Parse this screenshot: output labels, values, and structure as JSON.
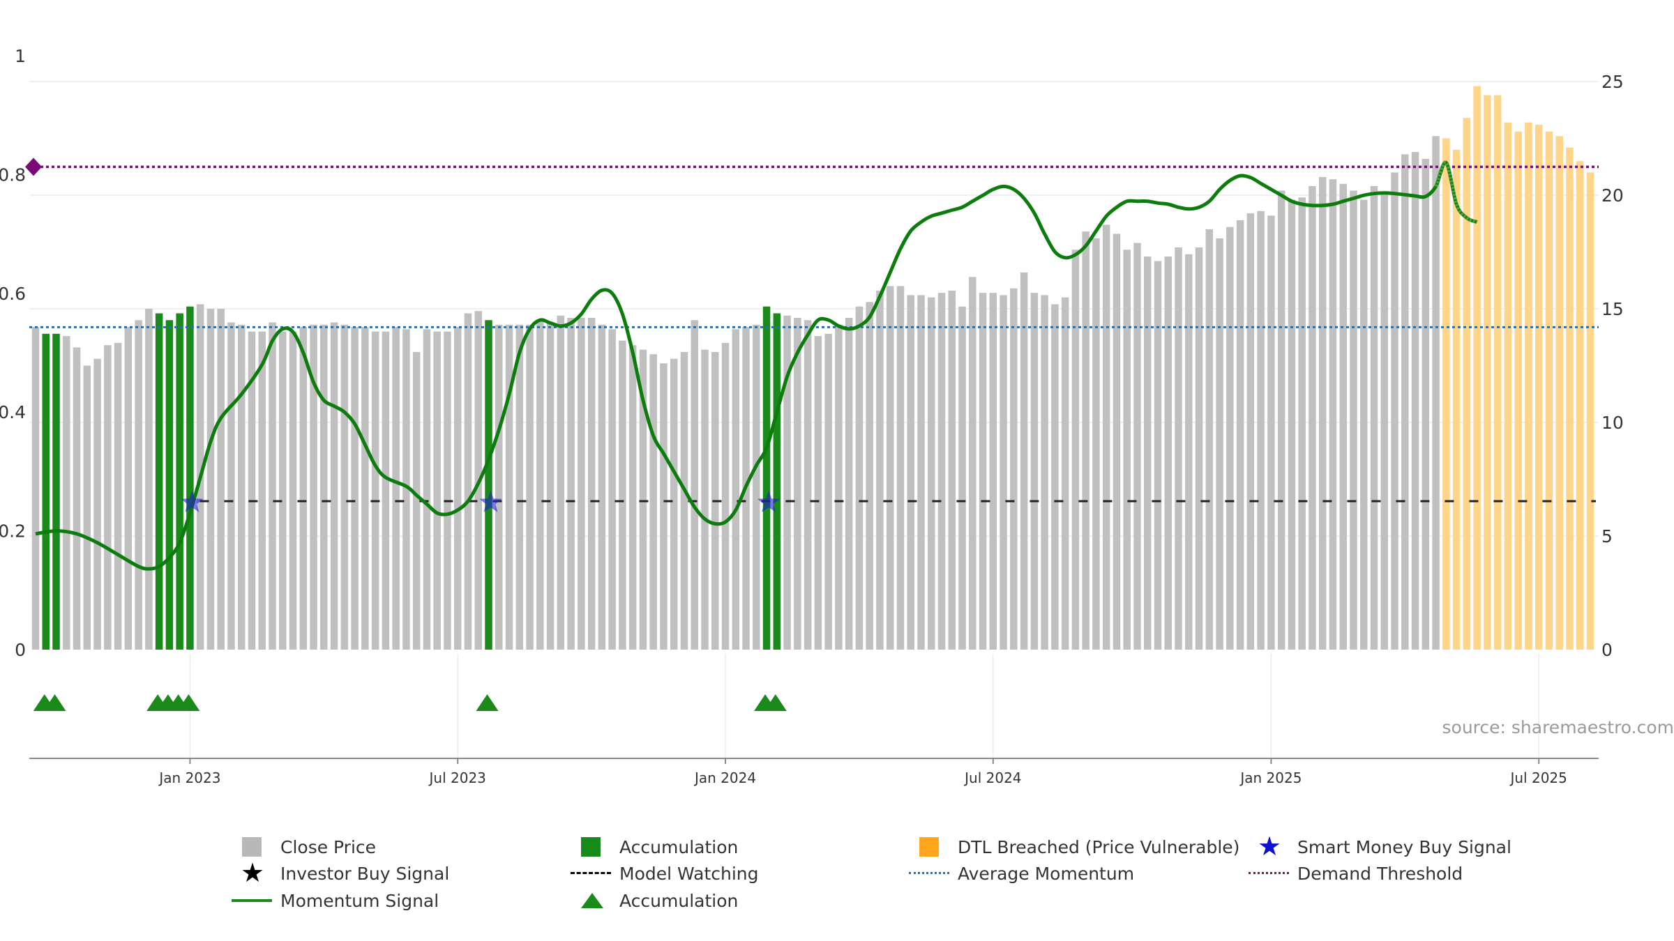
{
  "chart_data": {
    "type": "bar",
    "title": "",
    "source": "source: sharemaestro.com",
    "left_axis": {
      "range": [
        0,
        1
      ],
      "ticks": [
        "0",
        "0.2",
        "0.4",
        "0.6",
        "0.8",
        "1"
      ]
    },
    "right_axis": {
      "range": [
        0,
        25
      ],
      "ticks": [
        "0",
        "5",
        "10",
        "15",
        "20",
        "25"
      ]
    },
    "x_ticks": [
      {
        "label": "Jan 2023",
        "bar_index": 15
      },
      {
        "label": "Jul 2023",
        "bar_index": 41
      },
      {
        "label": "Jan 2024",
        "bar_index": 67
      },
      {
        "label": "Jul 2024",
        "bar_index": 93
      },
      {
        "label": "Jan 2025",
        "bar_index": 120
      },
      {
        "label": "Jul 2025",
        "bar_index": 146
      }
    ],
    "grid": true,
    "close_price": [
      14.2,
      13.9,
      13.9,
      13.8,
      13.3,
      12.5,
      12.8,
      13.4,
      13.5,
      14.2,
      14.5,
      15.0,
      14.8,
      14.5,
      14.8,
      15.1,
      15.2,
      15.0,
      15.0,
      14.4,
      14.3,
      14.0,
      14.0,
      14.4,
      14.0,
      14.0,
      14.2,
      14.3,
      14.3,
      14.4,
      14.3,
      14.2,
      14.2,
      14.0,
      14.0,
      14.2,
      14.1,
      13.1,
      14.1,
      14.0,
      14.0,
      14.2,
      14.8,
      14.9,
      14.5,
      14.3,
      14.3,
      14.3,
      14.3,
      14.5,
      14.4,
      14.7,
      14.6,
      14.6,
      14.6,
      14.3,
      14.1,
      13.6,
      13.4,
      13.2,
      13.0,
      12.6,
      12.8,
      13.1,
      14.5,
      13.2,
      13.1,
      13.5,
      14.1,
      14.2,
      14.3,
      15.1,
      14.8,
      14.7,
      14.6,
      14.5,
      13.8,
      13.9,
      14.3,
      14.6,
      15.1,
      15.3,
      15.8,
      16.0,
      16.0,
      15.6,
      15.6,
      15.5,
      15.7,
      15.8,
      15.1,
      16.4,
      15.7,
      15.7,
      15.6,
      15.9,
      16.6,
      15.7,
      15.6,
      15.2,
      15.5,
      17.6,
      18.4,
      18.1,
      18.7,
      18.3,
      17.6,
      17.9,
      17.3,
      17.1,
      17.3,
      17.7,
      17.4,
      17.7,
      18.5,
      18.1,
      18.6,
      18.9,
      19.2,
      19.3,
      19.1,
      20.2,
      19.8,
      19.9,
      20.4,
      20.8,
      20.7,
      20.5,
      20.2,
      19.8,
      20.4,
      20.1,
      21.0,
      21.8,
      21.9,
      21.6,
      22.6,
      22.5,
      22.0,
      23.4,
      24.8,
      24.4,
      24.4,
      23.2,
      22.8,
      23.2,
      23.1,
      22.8,
      22.6,
      22.1,
      21.5,
      21.0
    ],
    "accumulation_bar_indices": [
      1,
      2,
      12,
      13,
      14,
      15,
      44,
      71,
      72
    ],
    "dtl_breached_start_index": 137,
    "momentum": {
      "knots": [
        [
          0,
          0.195
        ],
        [
          2,
          0.2
        ],
        [
          4,
          0.195
        ],
        [
          6,
          0.18
        ],
        [
          8,
          0.16
        ],
        [
          10,
          0.14
        ],
        [
          11,
          0.136
        ],
        [
          12,
          0.14
        ],
        [
          13,
          0.155
        ],
        [
          14,
          0.18
        ],
        [
          15,
          0.23
        ],
        [
          16,
          0.29
        ],
        [
          17,
          0.35
        ],
        [
          18,
          0.39
        ],
        [
          20,
          0.43
        ],
        [
          22,
          0.48
        ],
        [
          23,
          0.52
        ],
        [
          24,
          0.54
        ],
        [
          25,
          0.535
        ],
        [
          26,
          0.5
        ],
        [
          27,
          0.45
        ],
        [
          28,
          0.42
        ],
        [
          29,
          0.41
        ],
        [
          30,
          0.4
        ],
        [
          31,
          0.38
        ],
        [
          32,
          0.345
        ],
        [
          33,
          0.31
        ],
        [
          34,
          0.29
        ],
        [
          36,
          0.275
        ],
        [
          37,
          0.26
        ],
        [
          38,
          0.245
        ],
        [
          39,
          0.23
        ],
        [
          40,
          0.228
        ],
        [
          41,
          0.235
        ],
        [
          42,
          0.25
        ],
        [
          43,
          0.28
        ],
        [
          44,
          0.32
        ],
        [
          45,
          0.37
        ],
        [
          46,
          0.43
        ],
        [
          47,
          0.5
        ],
        [
          48,
          0.54
        ],
        [
          49,
          0.555
        ],
        [
          50,
          0.55
        ],
        [
          51,
          0.545
        ],
        [
          52,
          0.55
        ],
        [
          53,
          0.565
        ],
        [
          54,
          0.59
        ],
        [
          55,
          0.605
        ],
        [
          56,
          0.6
        ],
        [
          57,
          0.565
        ],
        [
          58,
          0.5
        ],
        [
          59,
          0.42
        ],
        [
          60,
          0.36
        ],
        [
          61,
          0.33
        ],
        [
          62,
          0.3
        ],
        [
          63,
          0.27
        ],
        [
          64,
          0.24
        ],
        [
          65,
          0.22
        ],
        [
          66,
          0.212
        ],
        [
          67,
          0.215
        ],
        [
          68,
          0.235
        ],
        [
          69,
          0.275
        ],
        [
          70,
          0.31
        ],
        [
          71,
          0.34
        ],
        [
          72,
          0.4
        ],
        [
          73,
          0.46
        ],
        [
          74,
          0.5
        ],
        [
          75,
          0.53
        ],
        [
          76,
          0.555
        ],
        [
          77,
          0.555
        ],
        [
          78,
          0.545
        ],
        [
          79,
          0.54
        ],
        [
          80,
          0.545
        ],
        [
          81,
          0.56
        ],
        [
          82,
          0.595
        ],
        [
          83,
          0.635
        ],
        [
          84,
          0.675
        ],
        [
          85,
          0.705
        ],
        [
          86,
          0.72
        ],
        [
          87,
          0.73
        ],
        [
          88,
          0.735
        ],
        [
          89,
          0.74
        ],
        [
          90,
          0.745
        ],
        [
          91,
          0.755
        ],
        [
          92,
          0.765
        ],
        [
          93,
          0.775
        ],
        [
          94,
          0.78
        ],
        [
          95,
          0.775
        ],
        [
          96,
          0.76
        ],
        [
          97,
          0.735
        ],
        [
          98,
          0.7
        ],
        [
          99,
          0.67
        ],
        [
          100,
          0.66
        ],
        [
          101,
          0.665
        ],
        [
          102,
          0.68
        ],
        [
          103,
          0.705
        ],
        [
          104,
          0.73
        ],
        [
          105,
          0.745
        ],
        [
          106,
          0.755
        ],
        [
          107,
          0.755
        ],
        [
          108,
          0.755
        ],
        [
          109,
          0.752
        ],
        [
          110,
          0.75
        ],
        [
          111,
          0.745
        ],
        [
          112,
          0.742
        ],
        [
          113,
          0.745
        ],
        [
          114,
          0.755
        ],
        [
          115,
          0.775
        ],
        [
          116,
          0.79
        ],
        [
          117,
          0.798
        ],
        [
          118,
          0.795
        ],
        [
          119,
          0.785
        ],
        [
          120,
          0.775
        ],
        [
          121,
          0.765
        ],
        [
          122,
          0.755
        ],
        [
          123,
          0.75
        ],
        [
          124,
          0.748
        ],
        [
          125,
          0.748
        ],
        [
          126,
          0.75
        ],
        [
          127,
          0.755
        ],
        [
          128,
          0.76
        ],
        [
          129,
          0.765
        ],
        [
          130,
          0.768
        ],
        [
          131,
          0.769
        ],
        [
          132,
          0.768
        ],
        [
          133,
          0.766
        ],
        [
          134,
          0.764
        ],
        [
          135,
          0.763
        ],
        [
          136,
          0.78
        ],
        [
          137,
          0.82
        ],
        [
          138,
          0.75
        ],
        [
          139,
          0.727
        ],
        [
          140,
          0.72
        ]
      ],
      "dtl_from_index": 137
    },
    "average_momentum": 0.543,
    "demand_threshold": 0.813,
    "model_watching": 0.25,
    "smart_money_buy_signals": [
      15,
      44,
      71
    ],
    "accumulation_markers": [
      1,
      2,
      12,
      13,
      14,
      15,
      44,
      71,
      72
    ],
    "colors": {
      "close_price": "#c0c0c0",
      "accumulation": "#1a8a1a",
      "dtl_breached": "#ffd58a",
      "momentum": "#0c7d0c",
      "momentum_faded": "#4f9f3f",
      "average_momentum": "#2a6fa5",
      "demand_threshold": "#7a0c7a",
      "smart_money": "#1f1fcf",
      "model_watching": "#222222"
    },
    "legend": [
      {
        "label": "Close Price",
        "symbol": "square",
        "color": "#b8b8b8"
      },
      {
        "label": "Accumulation",
        "symbol": "square",
        "color": "#1a8a1a"
      },
      {
        "label": "DTL Breached (Price Vulnerable)",
        "symbol": "square",
        "color": "#ffa51e"
      },
      {
        "label": "Smart Money Buy Signal",
        "symbol": "star",
        "color": "#1010d0"
      },
      {
        "label": "Investor Buy Signal",
        "symbol": "star",
        "color": "#000000"
      },
      {
        "label": "Model Watching",
        "symbol": "dash",
        "color": "#000000"
      },
      {
        "label": "Average Momentum",
        "symbol": "dot",
        "color": "#2a6fa5"
      },
      {
        "label": "Demand Threshold",
        "symbol": "dot",
        "color": "#7a0c7a"
      },
      {
        "label": "Momentum Signal",
        "symbol": "line",
        "color": "#1a8a1a"
      },
      {
        "label": "Accumulation",
        "symbol": "triangle",
        "color": "#1a8a1a"
      }
    ]
  }
}
